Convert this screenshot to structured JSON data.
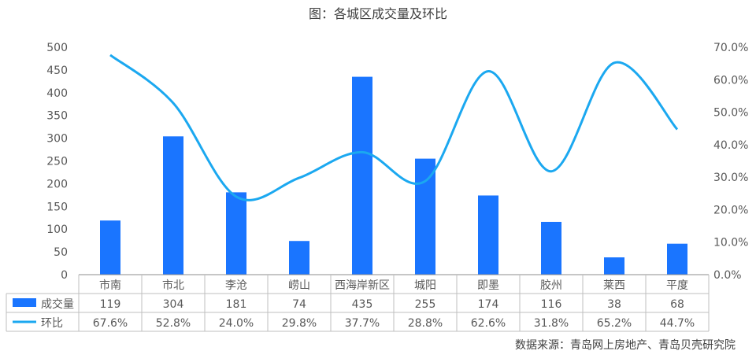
{
  "title": "图：各城区成交量及环比",
  "source": "数据来源：青岛网上房地产、青岛贝壳研究院",
  "colors": {
    "bar": "#1A75FF",
    "line": "#1BA8F0",
    "axis": "#666666",
    "grid": "#BFBFBF"
  },
  "chart_data": {
    "type": "bar",
    "title": "图：各城区成交量及环比",
    "categories": [
      "市南",
      "市北",
      "李沧",
      "崂山",
      "西海岸新区",
      "城阳",
      "即墨",
      "胶州",
      "莱西",
      "平度"
    ],
    "series": [
      {
        "name": "成交量",
        "type": "bar",
        "axis": "left",
        "values": [
          119,
          304,
          181,
          74,
          435,
          255,
          174,
          116,
          38,
          68
        ],
        "labels": [
          "119",
          "304",
          "181",
          "74",
          "435",
          "255",
          "174",
          "116",
          "38",
          "68"
        ]
      },
      {
        "name": "环比",
        "type": "line",
        "axis": "right",
        "values": [
          67.6,
          52.8,
          24.0,
          29.8,
          37.7,
          28.8,
          62.6,
          31.8,
          65.2,
          44.7
        ],
        "labels": [
          "67.6%",
          "52.8%",
          "24.0%",
          "29.8%",
          "37.7%",
          "28.8%",
          "62.6%",
          "31.8%",
          "65.2%",
          "44.7%"
        ]
      }
    ],
    "ylim": [
      0,
      500
    ],
    "yticks": [
      "0",
      "50",
      "100",
      "150",
      "200",
      "250",
      "300",
      "350",
      "400",
      "450",
      "500"
    ],
    "y2lim": [
      0,
      70
    ],
    "y2ticks": [
      "0.0%",
      "10.0%",
      "20.0%",
      "30.0%",
      "40.0%",
      "50.0%",
      "60.0%",
      "70.0%"
    ],
    "legend": "data-table-bottom",
    "grid": false
  }
}
